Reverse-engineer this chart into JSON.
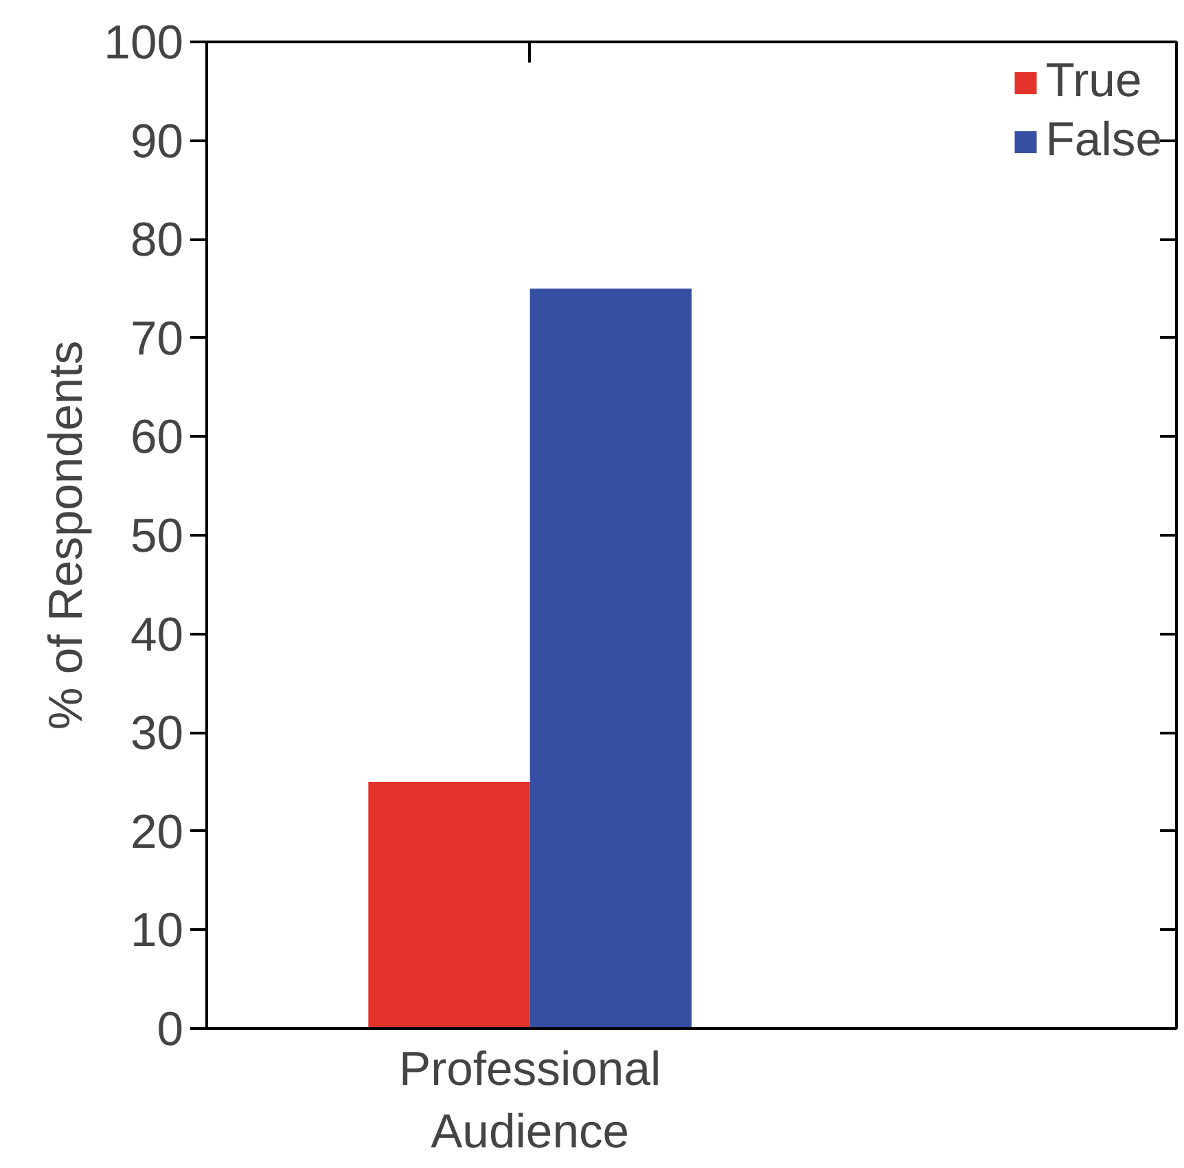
{
  "chart_data": {
    "type": "bar",
    "categories": [
      "Professional Audience"
    ],
    "series": [
      {
        "name": "True",
        "color": "#e3332a",
        "values": [
          25
        ]
      },
      {
        "name": "False",
        "color": "#364fa3",
        "values": [
          75
        ]
      }
    ],
    "ylabel": "% of Respondents",
    "ylim": [
      0,
      100
    ],
    "yticks": [
      0,
      10,
      20,
      30,
      40,
      50,
      60,
      70,
      80,
      90,
      100
    ],
    "grid": false,
    "legend": "top right"
  }
}
